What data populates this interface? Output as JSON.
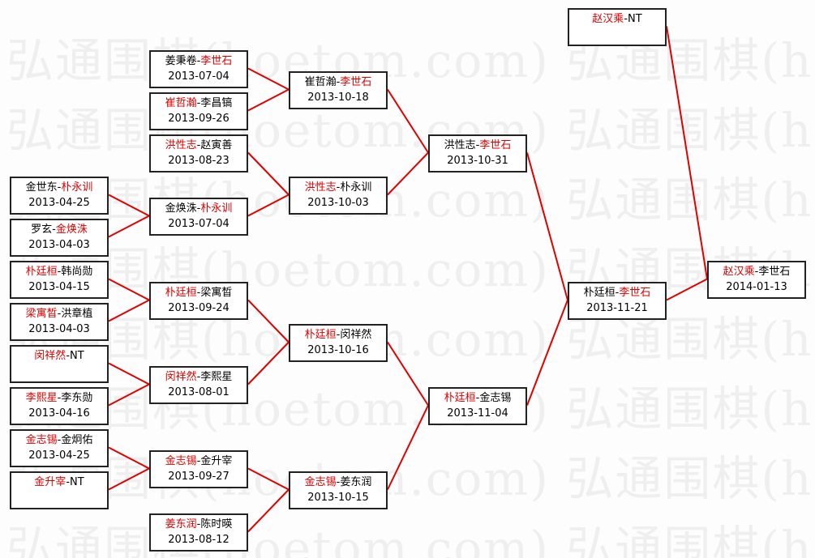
{
  "watermark": "弘通围棋(hoetom.com)",
  "colors": {
    "winner": "#e00000",
    "line": "#e00000",
    "border": "#222222"
  },
  "rounds": [
    {
      "matches": [
        {
          "p1": "金世东",
          "p2": "朴永训",
          "winner": 2,
          "date": "2013-04-25"
        },
        {
          "p1": "罗玄",
          "p2": "金焕洙",
          "winner": 2,
          "date": "2013-04-03"
        },
        {
          "p1": "朴廷桓",
          "p2": "韩尚勋",
          "winner": 1,
          "date": "2013-04-15"
        },
        {
          "p1": "梁寓晳",
          "p2": "洪章植",
          "winner": 1,
          "date": "2013-04-03"
        },
        {
          "p1": "闵祥然",
          "p2": "NT",
          "winner": 1,
          "date": ""
        },
        {
          "p1": "李熙星",
          "p2": "李东勋",
          "winner": 1,
          "date": "2013-04-16"
        },
        {
          "p1": "金志锡",
          "p2": "金炯佑",
          "winner": 1,
          "date": "2013-04-25"
        },
        {
          "p1": "金升宰",
          "p2": "NT",
          "winner": 1,
          "date": ""
        }
      ]
    },
    {
      "matches": [
        {
          "p1": "姜秉卷",
          "p2": "李世石",
          "winner": 2,
          "date": "2013-07-04"
        },
        {
          "p1": "崔哲瀚",
          "p2": "李昌镐",
          "winner": 1,
          "date": "2013-09-26"
        },
        {
          "p1": "洪性志",
          "p2": "赵寅善",
          "winner": 1,
          "date": "2013-08-23"
        },
        {
          "p1": "金焕洙",
          "p2": "朴永训",
          "winner": 2,
          "date": "2013-07-04"
        },
        {
          "p1": "朴廷桓",
          "p2": "梁寓晳",
          "winner": 1,
          "date": "2013-09-24"
        },
        {
          "p1": "闵祥然",
          "p2": "李熙星",
          "winner": 1,
          "date": "2013-08-01"
        },
        {
          "p1": "金志锡",
          "p2": "金升宰",
          "winner": 1,
          "date": "2013-09-27"
        },
        {
          "p1": "姜东润",
          "p2": "陈时暎",
          "winner": 1,
          "date": "2013-08-12"
        }
      ]
    },
    {
      "matches": [
        {
          "p1": "崔哲瀚",
          "p2": "李世石",
          "winner": 2,
          "date": "2013-10-18"
        },
        {
          "p1": "洪性志",
          "p2": "朴永训",
          "winner": 1,
          "date": "2013-10-03"
        },
        {
          "p1": "朴廷桓",
          "p2": "闵祥然",
          "winner": 1,
          "date": "2013-10-16"
        },
        {
          "p1": "金志锡",
          "p2": "姜东润",
          "winner": 1,
          "date": "2013-10-15"
        }
      ]
    },
    {
      "matches": [
        {
          "p1": "洪性志",
          "p2": "李世石",
          "winner": 2,
          "date": "2013-10-31"
        },
        {
          "p1": "朴廷桓",
          "p2": "金志锡",
          "winner": 1,
          "date": "2013-11-04"
        }
      ]
    },
    {
      "matches": [
        {
          "p1": "赵汉乘",
          "p2": "NT",
          "winner": 1,
          "date": ""
        },
        {
          "p1": "朴廷桓",
          "p2": "李世石",
          "winner": 2,
          "date": "2013-11-21"
        }
      ]
    },
    {
      "matches": [
        {
          "p1": "赵汉乘",
          "p2": "李世石",
          "winner": 1,
          "date": "2014-01-13"
        }
      ]
    }
  ]
}
